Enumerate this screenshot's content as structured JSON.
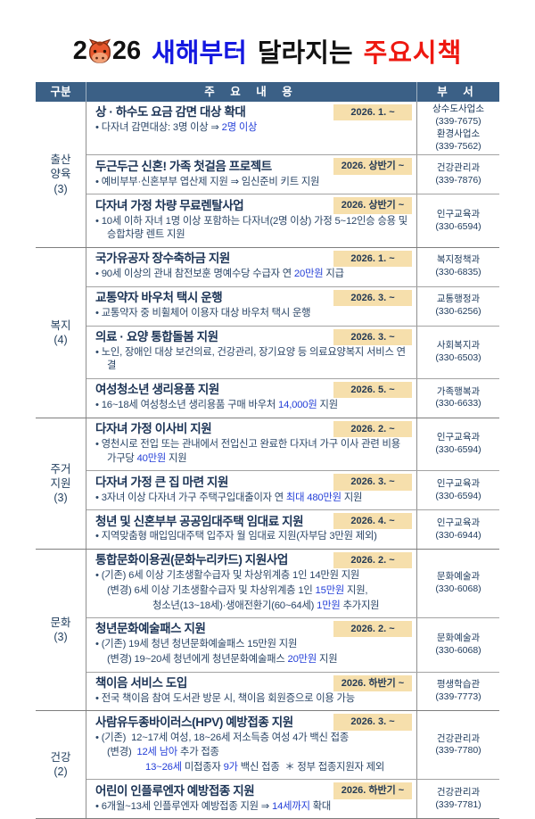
{
  "title": {
    "year_prefix": "2",
    "year_suffix": "26",
    "blue_word": "새해부터",
    "black_word": "달라지는",
    "red_word": "주요시책"
  },
  "icons": {
    "year_mascot": "horse-face-icon"
  },
  "colors": {
    "header_bg": "#3b6086",
    "badge_bg": "#f6dfac",
    "highlight_blue": "#2540d8",
    "title_blue": "#1418e0",
    "title_red": "#ee1810",
    "mascot_orange": "#e8582e"
  },
  "header": {
    "col_category": "구분",
    "col_content": "주 요 내 용",
    "col_dept": "부 서"
  },
  "sections": [
    {
      "label_lines": [
        "출산",
        "양육",
        "(3)"
      ],
      "rows": [
        {
          "title": "상 · 하수도 요금 감면 대상 확대",
          "date": "2026. 1. ~",
          "dept_lines": [
            "상수도사업소",
            "(339-7675)",
            "환경사업소",
            "(339-7562)"
          ],
          "details": [
            {
              "b": true,
              "ind": 0,
              "t": "다자녀 감면대상: 3명 이상 ⇒ [[2명 이상]]"
            }
          ]
        },
        {
          "title": "두근두근 신혼! 가족 첫걸음 프로젝트",
          "date": "2026. 상반기 ~",
          "dept_lines": [
            "건강관리과",
            "(339-7876)"
          ],
          "details": [
            {
              "b": true,
              "ind": 0,
              "t": "예비부부·신혼부부 엽산제 지원 ⇒ 임신준비 키트 지원"
            }
          ]
        },
        {
          "title": "다자녀 가정 차량 무료렌탈사업",
          "date": "2026. 상반기 ~",
          "dept_lines": [
            "인구교육과",
            "(330-6594)"
          ],
          "details": [
            {
              "b": true,
              "ind": 0,
              "t": "10세 이하 자녀 1명 이상 포함하는 다자녀(2명 이상) 가정 5~12인승 승용 및 승합차량 렌트 지원"
            }
          ]
        }
      ]
    },
    {
      "label_lines": [
        "복지",
        "(4)"
      ],
      "rows": [
        {
          "title": "국가유공자 장수축하금 지원",
          "date": "2026. 1. ~",
          "dept_lines": [
            "복지정책과",
            "(330-6835)"
          ],
          "details": [
            {
              "b": true,
              "ind": 0,
              "t": "90세 이상의 관내 참전보훈 명예수당 수급자 연 [[20만원]] 지급"
            }
          ]
        },
        {
          "title": "교통약자 바우처 택시 운행",
          "date": "2026. 3. ~",
          "dept_lines": [
            "교통행정과",
            "(330-6256)"
          ],
          "details": [
            {
              "b": true,
              "ind": 0,
              "t": "교통약자 중 비휠체어 이용자 대상 바우처 택시 운행"
            }
          ]
        },
        {
          "title": "의료 · 요양 통합돌봄 지원",
          "date": "2026. 3. ~",
          "dept_lines": [
            "사회복지과",
            "(330-6503)"
          ],
          "details": [
            {
              "b": true,
              "ind": 0,
              "t": "노인, 장애인 대상 보건의료, 건강관리, 장기요양 등 의료요양복지 서비스 연결"
            }
          ]
        },
        {
          "title": "여성청소년 생리용품 지원",
          "date": "2026. 5. ~",
          "dept_lines": [
            "가족행복과",
            "(330-6633)"
          ],
          "details": [
            {
              "b": true,
              "ind": 0,
              "t": "16~18세 여성청소년 생리용품 구매 바우처 [[14,000원]] 지원"
            }
          ]
        }
      ]
    },
    {
      "label_lines": [
        "주거",
        "지원",
        "(3)"
      ],
      "rows": [
        {
          "title": "다자녀 가정 이사비 지원",
          "date": "2026. 2. ~",
          "dept_lines": [
            "인구교육과",
            "(330-6594)"
          ],
          "details": [
            {
              "b": true,
              "ind": 0,
              "t": "영천시로 전입 또는 관내에서 전입신고 완료한 다자녀 가구 이사 관련 비용 가구당 [[40만원]] 지원"
            }
          ]
        },
        {
          "title": "다자녀 가정 큰 집 마련 지원",
          "date": "2026. 3. ~",
          "dept_lines": [
            "인구교육과",
            "(330-6594)"
          ],
          "details": [
            {
              "b": true,
              "ind": 0,
              "t": "3자녀 이상 다자녀 가구 주택구입대출이자 연 [[최대 480만원]] 지원"
            }
          ]
        },
        {
          "title": "청년 및 신혼부부 공공임대주택 임대료 지원",
          "date": "2026. 4. ~",
          "dept_lines": [
            "인구교육과",
            "(330-6944)"
          ],
          "details": [
            {
              "b": true,
              "ind": 0,
              "t": "지역맞춤형 매입임대주택 입주자 월 임대료 지원(자부담 3만원 제외)"
            }
          ]
        }
      ]
    },
    {
      "label_lines": [
        "문화",
        "(3)"
      ],
      "rows": [
        {
          "title": "통합문화이용권(문화누리카드) 지원사업",
          "date": "2026. 2. ~",
          "dept_lines": [
            "문화예술과",
            "(330-6068)"
          ],
          "details": [
            {
              "b": true,
              "ind": 0,
              "t": "(기존) 6세 이상 기초생활수급자 및 차상위계층 1인 14만원 지원"
            },
            {
              "b": false,
              "ind": 1,
              "t": "(변경) 6세 이상 기초생활수급자 및 차상위계층 1인 [[15만원]] 지원,"
            },
            {
              "b": false,
              "ind": 2,
              "t": "청소년(13~18세)·생애전환기(60~64세) [[1만원]] 추가지원"
            }
          ]
        },
        {
          "title": "청년문화예술패스 지원",
          "date": "2026. 2. ~",
          "dept_lines": [
            "문화예술과",
            "(330-6068)"
          ],
          "details": [
            {
              "b": true,
              "ind": 0,
              "t": "(기존) 19세 청년 청년문화예술패스 15만원 지원"
            },
            {
              "b": false,
              "ind": 1,
              "t": "(변경) 19~20세 청년에게 청년문화예술패스 [[20만원]] 지원"
            }
          ]
        },
        {
          "title": "책이음 서비스 도입",
          "date": "2026. 하반기 ~",
          "dept_lines": [
            "평생학습관",
            "(339-7773)"
          ],
          "details": [
            {
              "b": true,
              "ind": 0,
              "t": "전국 책이음 참여 도서관 방문 시, 책이음 회원증으로 이용 가능"
            }
          ]
        }
      ]
    },
    {
      "label_lines": [
        "건강",
        "(2)"
      ],
      "rows": [
        {
          "title": "사람유두종바이러스(HPV) 예방접종 지원",
          "date": "2026. 3. ~",
          "dept_lines": [
            "건강관리과",
            "(339-7780)"
          ],
          "details": [
            {
              "b": true,
              "ind": 0,
              "t": "(기존)  12~17세 여성, 18~26세 저소득층 여성 4가 백신 접종"
            },
            {
              "b": false,
              "ind": 1,
              "t": "(변경)  [[12세 남아]] 추가 접종"
            },
            {
              "b": false,
              "ind": 3,
              "t": "[[13~26세]] 미접종자 [[9가]] 백신 접종  ＊ 정부 접종지원자 제외"
            }
          ]
        },
        {
          "title": "어린이 인플루엔자 예방접종 지원",
          "date": "2026. 하반기 ~",
          "dept_lines": [
            "건강관리과",
            "(339-7781)"
          ],
          "details": [
            {
              "b": true,
              "ind": 0,
              "t": "6개월~13세 인플루엔자 예방접종 지원 ⇒ [[14세까지]] 확대"
            }
          ]
        }
      ]
    }
  ]
}
